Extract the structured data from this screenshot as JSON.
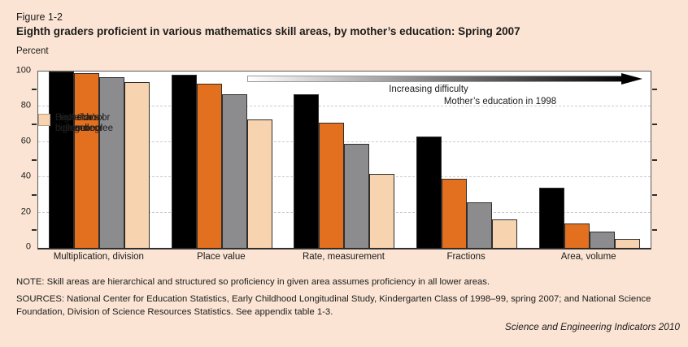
{
  "figure": {
    "label": "Figure 1-2",
    "title": "Eighth graders proficient in various mathematics skill areas, by mother’s education: Spring 2007",
    "unit_label": "Percent"
  },
  "chart_data": {
    "type": "bar",
    "title": "Eighth graders proficient in various mathematics skill areas, by mother’s education: Spring 2007",
    "xlabel": "",
    "ylabel": "Percent",
    "ylim": [
      0,
      100
    ],
    "yticks": [
      0,
      20,
      40,
      60,
      80,
      100
    ],
    "minor_yticks": [
      10,
      30,
      50,
      70,
      90
    ],
    "gridlines": [
      20,
      40,
      60,
      80
    ],
    "grid_style": "horizontal dashed",
    "legend_position": "inside upper right",
    "legend_title": "Mother’s education in 1998",
    "annotation": "Increasing difficulty",
    "categories": [
      "Multiplication, division",
      "Place value",
      "Rate, measurement",
      "Fractions",
      "Area, volume"
    ],
    "series": [
      {
        "name": "Bachelor’s or higher degree",
        "legend_lines": [
          "Bachelor’s or",
          "higher degree"
        ],
        "color": "#000000",
        "values": [
          100,
          98,
          87,
          63,
          34
        ]
      },
      {
        "name": "Some college",
        "legend_lines": [
          "Some",
          "college"
        ],
        "color": "#E2701E",
        "values": [
          99,
          93,
          71,
          39,
          14
        ]
      },
      {
        "name": "High school diploma",
        "legend_lines": [
          "High school",
          "diploma"
        ],
        "color": "#8C8C8E",
        "values": [
          97,
          87,
          59,
          26,
          9
        ]
      },
      {
        "name": "Less than high school",
        "legend_lines": [
          "Less than",
          "high school"
        ],
        "color": "#F8D3AF",
        "values": [
          94,
          73,
          42,
          16,
          5
        ]
      }
    ]
  },
  "footer": {
    "note": "NOTE: Skill areas are hierarchical and structured so proficiency in given area assumes proficiency in all lower areas.",
    "sources": "SOURCES: National Center for Education Statistics, Early Childhood Longitudinal Study, Kindergarten Class of 1998–99, spring 2007; and National Science Foundation, Division of Science Resources Statistics. See appendix table 1-3.",
    "attribution": "Science and Engineering Indicators 2010"
  },
  "colors": {
    "page_bg": "#FBE4D3",
    "plot_bg": "#FFFFFF",
    "axis": "#2E2E2E",
    "grid": "#CBCBCB",
    "text": "#1C1C1C",
    "bar_border": "#2E2E2E"
  }
}
